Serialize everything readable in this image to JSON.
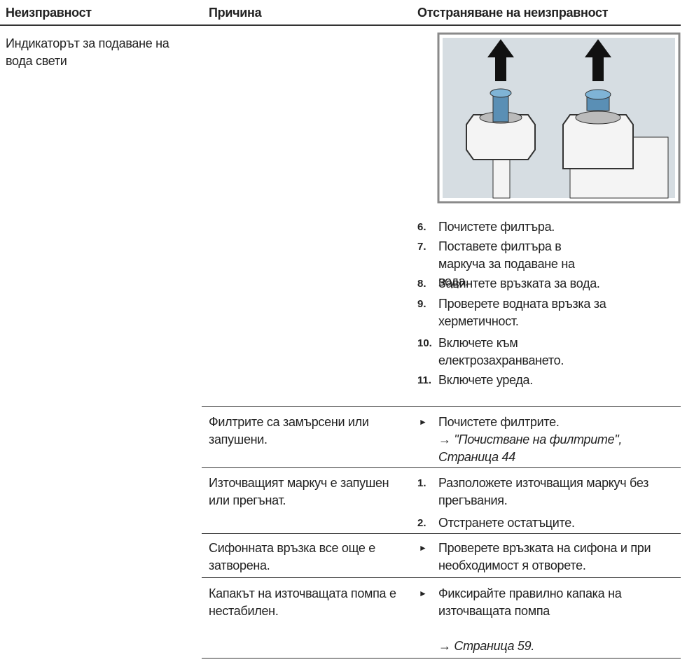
{
  "header": {
    "col1": "Неизправност",
    "col2": "Причина",
    "col3": "Отстраняване на неизправност"
  },
  "rows": [
    {
      "problem": "Индикаторът за подаване на вода свети",
      "steps": [
        {
          "number": "6.",
          "text": "Почистете филтъра."
        },
        {
          "number": "7.",
          "text": "Поставете филтъра в маркуча за подаване на вода."
        },
        {
          "number": "8.",
          "text": "Завинтете връзката за вода."
        },
        {
          "number": "9.",
          "text": "Проверете водната връзка за херметичност."
        },
        {
          "number": "10.",
          "text": "Включете към електрозахранването."
        },
        {
          "number": "11.",
          "text": "Включете уреда."
        }
      ]
    },
    {
      "cause": "Филтрите са замърсени или запушени.",
      "action": "Почистете филтрите.",
      "reference": "→ \"Почистване на филтрите\", Страница 44"
    },
    {
      "cause": "Източващият маркуч е запушен или прегънат.",
      "steps": [
        {
          "number": "1.",
          "text": "Разположете източващия маркуч без прегъвания."
        },
        {
          "number": "2.",
          "text": "Отстранете остатъците."
        }
      ]
    },
    {
      "cause": "Сифонната връзка все още е затворена.",
      "action": "Проверете връзката на сифона и при необходимост я отворете."
    },
    {
      "cause": "Капакът на източващата помпа е нестабилен.",
      "action": "Фиксирайте правилно капака на източващата помпа",
      "reference": "→ Страница 59."
    }
  ]
}
